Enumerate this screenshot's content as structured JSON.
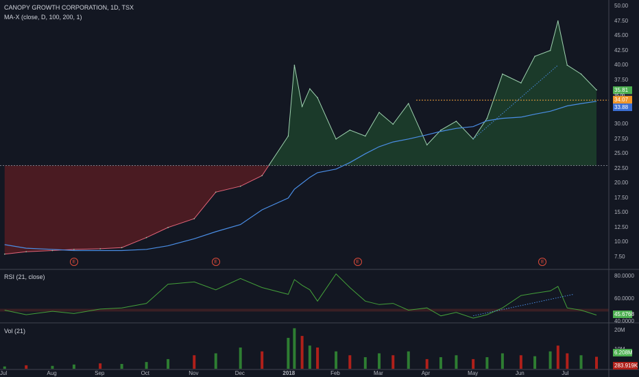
{
  "header": {
    "symbol_title": "CANOPY GROWTH CORPORATION, 1D, TSX",
    "study_label": "MA-X (close, D, 100, 200, 1)"
  },
  "rsi_pane": {
    "title": "RSI (21, close)"
  },
  "vol_pane": {
    "title": "Vol (21)"
  },
  "earnings_marker": "E",
  "price_axis": [
    "50.00",
    "47.50",
    "45.00",
    "42.50",
    "40.00",
    "37.50",
    "35.00",
    "32.50",
    "30.00",
    "27.50",
    "25.00",
    "22.50",
    "20.00",
    "17.50",
    "15.00",
    "12.50",
    "10.00",
    "7.50"
  ],
  "rsi_axis": [
    "80.0000",
    "60.0000",
    "40.0000"
  ],
  "vol_axis": [
    "20M",
    "10M"
  ],
  "price_tags": {
    "last": "35.81",
    "hline": "34.07",
    "ma": "33.88",
    "hidden": "35.00"
  },
  "rsi_tag": "45.6768",
  "vol_tags": {
    "vol": "6.208M",
    "ma": "283.919K"
  },
  "time_axis": [
    "Jul",
    "Aug",
    "Sep",
    "Oct",
    "Nov",
    "Dec",
    "2018",
    "Feb",
    "Mar",
    "Apr",
    "May",
    "Jun",
    "Jul"
  ],
  "colors": {
    "background": "#131722",
    "price_up_fill": "#1b3a2a",
    "price_down_fill": "#4a1b22",
    "price_up_line": "#9fd3b0",
    "price_down_line": "#e5657a",
    "ma_line": "#4a8ee6",
    "hline": "#f5a33b",
    "rsi_line": "#44a13a",
    "rsi_mid": "#e04b3a",
    "vol_up": "#2e7d32",
    "vol_down": "#b0201a",
    "tag_last": "#4caf50",
    "tag_hline": "#f0962a",
    "tag_ma": "#3a6ed3",
    "tag_rsi": "#4caf50",
    "tag_vol": "#4caf50",
    "tag_vol_ma": "#b0201a"
  },
  "chart_data": {
    "type": "area",
    "x": [
      "2017-07-01",
      "2017-07-15",
      "2017-08-01",
      "2017-08-15",
      "2017-09-01",
      "2017-09-15",
      "2017-10-01",
      "2017-10-15",
      "2017-11-01",
      "2017-11-15",
      "2017-12-01",
      "2017-12-15",
      "2018-01-01",
      "2018-01-05",
      "2018-01-10",
      "2018-01-15",
      "2018-01-20",
      "2018-02-01",
      "2018-02-10",
      "2018-02-20",
      "2018-03-01",
      "2018-03-10",
      "2018-03-20",
      "2018-04-01",
      "2018-04-10",
      "2018-04-20",
      "2018-05-01",
      "2018-05-10",
      "2018-05-20",
      "2018-06-01",
      "2018-06-10",
      "2018-06-20",
      "2018-06-25",
      "2018-07-01",
      "2018-07-10",
      "2018-07-20"
    ],
    "series": [
      {
        "values": [
          8.0,
          8.4,
          8.6,
          8.8,
          8.9,
          9.1,
          10.8,
          12.5,
          14.0,
          18.5,
          19.5,
          21.3,
          28.0,
          40.0,
          33.0,
          36.0,
          34.5,
          27.5,
          29.0,
          28.0,
          32.0,
          30.0,
          33.5,
          26.5,
          29.0,
          30.5,
          27.5,
          31.0,
          38.5,
          37.0,
          41.5,
          42.5,
          47.5,
          40.0,
          38.5,
          35.81
        ]
      },
      {
        "values": [
          9.6,
          9.0,
          8.8,
          8.6,
          8.6,
          8.6,
          8.8,
          9.4,
          10.6,
          11.8,
          13.0,
          15.5,
          17.5,
          19.0,
          20.0,
          21.0,
          21.8,
          22.4,
          23.5,
          25.0,
          26.2,
          27.0,
          27.5,
          28.2,
          28.8,
          29.3,
          29.6,
          30.6,
          31.0,
          31.2,
          31.7,
          32.2,
          32.6,
          33.1,
          33.5,
          33.88
        ]
      }
    ],
    "horizontal_lines": [
      23.0,
      34.07
    ],
    "ylim": [
      6.0,
      50.0
    ],
    "xlabel": "",
    "ylabel": "",
    "grid": false,
    "earnings_dates": [
      "2017-08-15",
      "2017-11-15",
      "2018-02-15",
      "2018-06-15"
    ],
    "rsi": {
      "ylim": [
        30,
        90
      ],
      "midline": 50,
      "values": [
        50,
        46,
        49,
        47,
        51,
        52,
        56,
        73,
        75,
        68,
        78,
        70,
        64,
        77,
        72,
        68,
        58,
        82,
        70,
        58,
        55,
        56,
        50,
        52,
        45,
        48,
        43,
        46,
        52,
        63,
        65,
        67,
        71,
        52,
        50,
        45.68
      ]
    },
    "volume": {
      "ylim": [
        0,
        22000000
      ],
      "values": [
        1200000,
        1800000,
        1500000,
        2200000,
        2800000,
        2500000,
        3500000,
        5000000,
        7000000,
        8000000,
        11000000,
        9000000,
        16000000,
        21000000,
        17000000,
        12000000,
        11000000,
        9000000,
        7000000,
        6000000,
        8000000,
        7000000,
        9000000,
        5000000,
        6000000,
        7000000,
        5000000,
        6000000,
        8000000,
        7000000,
        6500000,
        9000000,
        12000000,
        8000000,
        7000000,
        6208000
      ],
      "down": [
        false,
        true,
        false,
        false,
        true,
        false,
        false,
        false,
        true,
        false,
        false,
        true,
        false,
        false,
        true,
        false,
        true,
        false,
        true,
        false,
        false,
        true,
        false,
        true,
        false,
        false,
        true,
        false,
        false,
        true,
        false,
        false,
        true,
        true,
        false,
        true
      ]
    }
  }
}
